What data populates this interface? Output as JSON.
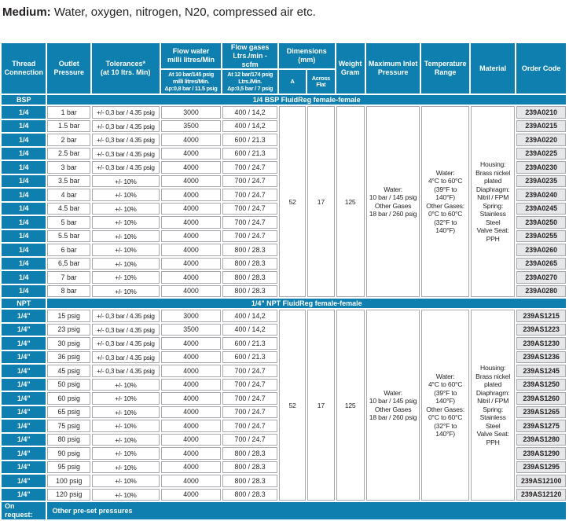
{
  "title": {
    "label": "Medium:",
    "text": " Water, oxygen, nitrogen, N20, compressed air etc."
  },
  "colors": {
    "accent_blue": "#0e7fae",
    "border_gray": "#a6a8ab",
    "code_cell_bg": "#e6e7e8",
    "text_dark": "#231f20"
  },
  "table": {
    "columns": {
      "thread": "Thread\nConnection",
      "outlet": "Outlet\nPressure",
      "tolerances": "Tolerances*\n(at 10 ltrs. Min)",
      "flow_water": "Flow water\nmilli litres/Min",
      "flow_water_sub": "At 10 bar/145 psig\nmilli litres/Min.\nΔp:0,8 bar / 11.5 psig",
      "flow_gases": "Flow gases\nLtrs./min - scfm",
      "flow_gases_sub": "At 12 bar/174 psig\nLtrs./Min.\nΔp:0,5 bar / 7 psig",
      "dimensions": "Dimensions (mm)",
      "dim_a": "A",
      "across_flat": "Across\nFlat",
      "weight": "Weight\nGram",
      "max_inlet": "Maximum Inlet\nPressure",
      "temp_range": "Temperature\nRange",
      "material": "Material",
      "order_code": "Order Code"
    },
    "sections": [
      {
        "id": "bsp",
        "label": "BSP",
        "banner": "1/4 BSP FluidReg female-female",
        "shared": {
          "dim_a": "52",
          "across_flat": "17",
          "weight": "125",
          "max_inlet": "Water:\n10 bar / 145 psig\nOther Gases\n18 bar / 260 psig",
          "temp_range": "Water:\n4°C to 60°C\n(39°F to 140°F)\nOther Gases:\n0°C to 60°C\n(32°F to 140°F)",
          "material": "Housing:\nBrass nickel\nplated\nDiaphragm:\nNitril / FPM\nSpring:\nStainless Steel\nValve Seat: PPH"
        },
        "rows": [
          {
            "thread": "1/4",
            "outlet": "1 bar",
            "tolerance": "+/- 0,3 bar / 4.35 psig",
            "flow_water": "3000",
            "flow_gases": "400 / 14,2",
            "order_code": "239A0210"
          },
          {
            "thread": "1/4",
            "outlet": "1.5 bar",
            "tolerance": "+/- 0,3 bar / 4.35 psig",
            "flow_water": "3500",
            "flow_gases": "400 / 14,2",
            "order_code": "239A0215"
          },
          {
            "thread": "1/4",
            "outlet": "2 bar",
            "tolerance": "+/- 0,3 bar / 4.35 psig",
            "flow_water": "4000",
            "flow_gases": "600 / 21.3",
            "order_code": "239A0220"
          },
          {
            "thread": "1/4",
            "outlet": "2.5 bar",
            "tolerance": "+/- 0,3 bar / 4.35 psig",
            "flow_water": "4000",
            "flow_gases": "600 / 21.3",
            "order_code": "239A0225"
          },
          {
            "thread": "1/4",
            "outlet": "3 bar",
            "tolerance": "+/- 0,3 bar / 4.35 psig",
            "flow_water": "4000",
            "flow_gases": "700 / 24.7",
            "order_code": "239A0230"
          },
          {
            "thread": "1/4",
            "outlet": "3.5 bar",
            "tolerance": "+/- 10%",
            "flow_water": "4000",
            "flow_gases": "700 / 24.7",
            "order_code": "239A0235"
          },
          {
            "thread": "1/4",
            "outlet": "4 bar",
            "tolerance": "+/- 10%",
            "flow_water": "4000",
            "flow_gases": "700 / 24.7",
            "order_code": "239A0240"
          },
          {
            "thread": "1/4",
            "outlet": "4.5 bar",
            "tolerance": "+/- 10%",
            "flow_water": "4000",
            "flow_gases": "700 / 24.7",
            "order_code": "239A0245"
          },
          {
            "thread": "1/4",
            "outlet": "5 bar",
            "tolerance": "+/- 10%",
            "flow_water": "4000",
            "flow_gases": "700 / 24.7",
            "order_code": "239A0250"
          },
          {
            "thread": "1/4",
            "outlet": "5.5 bar",
            "tolerance": "+/- 10%",
            "flow_water": "4000",
            "flow_gases": "700 / 24.7",
            "order_code": "239A0255"
          },
          {
            "thread": "1/4",
            "outlet": "6 bar",
            "tolerance": "+/- 10%",
            "flow_water": "4000",
            "flow_gases": "800 / 28.3",
            "order_code": "239A0260"
          },
          {
            "thread": "1/4",
            "outlet": "6,5 bar",
            "tolerance": "+/- 10%",
            "flow_water": "4000",
            "flow_gases": "800 / 28.3",
            "order_code": "239A0265"
          },
          {
            "thread": "1/4",
            "outlet": "7 bar",
            "tolerance": "+/- 10%",
            "flow_water": "4000",
            "flow_gases": "800 / 28.3",
            "order_code": "239A0270"
          },
          {
            "thread": "1/4",
            "outlet": "8 bar",
            "tolerance": "+/- 10%",
            "flow_water": "4000",
            "flow_gases": "800 / 28.3",
            "order_code": "239A0280"
          }
        ]
      },
      {
        "id": "npt",
        "label": "NPT",
        "banner": "1/4\" NPT FluidReg female-female",
        "shared": {
          "dim_a": "52",
          "across_flat": "17",
          "weight": "125",
          "max_inlet": "Water:\n10 bar / 145 psig\nOther Gases\n18 bar / 260 psig",
          "temp_range": "Water:\n4°C to 60°C\n(39°F to 140°F)\nOther Gases:\n0°C to 60°C\n(32°F to 140°F)",
          "material": "Housing:\nBrass nickel\nplated\nDiaphragm:\nNitril / FPM\nSpring:\nStainless Steel\nValve Seat:\nPPH"
        },
        "rows": [
          {
            "thread": "1/4\"",
            "outlet": "15 psig",
            "tolerance": "+/- 0,3 bar / 4.35 psig",
            "flow_water": "3000",
            "flow_gases": "400 / 14,2",
            "order_code": "239AS1215"
          },
          {
            "thread": "1/4\"",
            "outlet": "23 psig",
            "tolerance": "+/- 0,3 bar / 4.35 psig",
            "flow_water": "3500",
            "flow_gases": "400 / 14,2",
            "order_code": "239AS1223"
          },
          {
            "thread": "1/4\"",
            "outlet": "30 psig",
            "tolerance": "+/- 0,3 bar / 4.35 psig",
            "flow_water": "4000",
            "flow_gases": "600 / 21.3",
            "order_code": "239AS1230"
          },
          {
            "thread": "1/4\"",
            "outlet": "36 psig",
            "tolerance": "+/- 0,3 bar / 4.35 psig",
            "flow_water": "4000",
            "flow_gases": "600 / 21.3",
            "order_code": "239AS1236"
          },
          {
            "thread": "1/4\"",
            "outlet": "45 psig",
            "tolerance": "+/- 0,3 bar / 4.35 psig",
            "flow_water": "4000",
            "flow_gases": "700 / 24.7",
            "order_code": "239AS1245"
          },
          {
            "thread": "1/4\"",
            "outlet": "50 psig",
            "tolerance": "+/- 10%",
            "flow_water": "4000",
            "flow_gases": "700 / 24.7",
            "order_code": "239AS1250"
          },
          {
            "thread": "1/4\"",
            "outlet": "60 psig",
            "tolerance": "+/- 10%",
            "flow_water": "4000",
            "flow_gases": "700 / 24.7",
            "order_code": "239AS1260"
          },
          {
            "thread": "1/4\"",
            "outlet": "65 psig",
            "tolerance": "+/- 10%",
            "flow_water": "4000",
            "flow_gases": "700 / 24.7",
            "order_code": "239AS1265"
          },
          {
            "thread": "1/4\"",
            "outlet": "75 psig",
            "tolerance": "+/- 10%",
            "flow_water": "4000",
            "flow_gases": "700 / 24.7",
            "order_code": "239AS1275"
          },
          {
            "thread": "1/4\"",
            "outlet": "80 psig",
            "tolerance": "+/- 10%",
            "flow_water": "4000",
            "flow_gases": "700 / 24.7",
            "order_code": "239AS1280"
          },
          {
            "thread": "1/4\"",
            "outlet": "90 psig",
            "tolerance": "+/- 10%",
            "flow_water": "4000",
            "flow_gases": "800 / 28.3",
            "order_code": "239AS1290"
          },
          {
            "thread": "1/4\"",
            "outlet": "95 psig",
            "tolerance": "+/- 10%",
            "flow_water": "4000",
            "flow_gases": "800 / 28.3",
            "order_code": "239AS1295"
          },
          {
            "thread": "1/4\"",
            "outlet": "100 psig",
            "tolerance": "+/- 10%",
            "flow_water": "4000",
            "flow_gases": "800 / 28.3",
            "order_code": "239AS12100"
          },
          {
            "thread": "1/4\"",
            "outlet": "120 psig",
            "tolerance": "+/- 10%",
            "flow_water": "4000",
            "flow_gases": "800 / 28.3",
            "order_code": "239AS12120"
          }
        ]
      }
    ],
    "footer": {
      "label": "On request:",
      "text": "Other pre-set pressures"
    }
  }
}
